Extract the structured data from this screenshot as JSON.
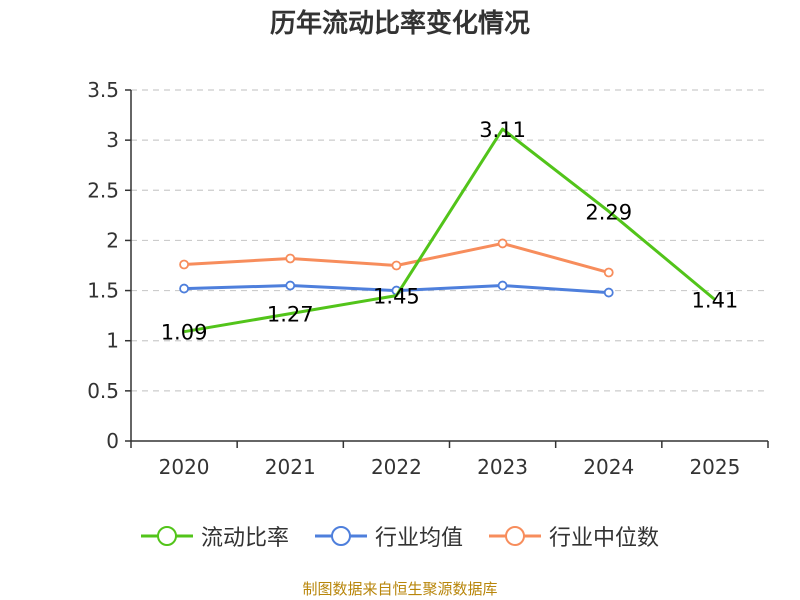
{
  "chart_data": {
    "type": "line",
    "title": "历年流动比率变化情况",
    "categories": [
      "2020",
      "2021",
      "2022",
      "2023",
      "2024",
      "2025"
    ],
    "ylim": [
      0,
      3.5
    ],
    "yticks": [
      "0",
      "0.5",
      "1",
      "1.5",
      "2",
      "2.5",
      "3",
      "3.5"
    ],
    "grid": true,
    "legend_position": "bottom",
    "series": [
      {
        "name": "流动比率",
        "color": "#52c41a",
        "show_labels": true,
        "values": [
          1.09,
          1.27,
          1.45,
          3.11,
          2.29,
          1.41
        ],
        "labels": [
          "1.09",
          "1.27",
          "1.45",
          "3.11",
          "2.29",
          "1.41"
        ]
      },
      {
        "name": "行业均值",
        "color": "#4e7fdc",
        "show_labels": false,
        "values": [
          1.52,
          1.55,
          1.5,
          1.55,
          1.48,
          null
        ]
      },
      {
        "name": "行业中位数",
        "color": "#f78d5c",
        "show_labels": false,
        "values": [
          1.76,
          1.82,
          1.75,
          1.97,
          1.68,
          null
        ]
      }
    ]
  },
  "footer": {
    "source": "制图数据来自恒生聚源数据库"
  }
}
